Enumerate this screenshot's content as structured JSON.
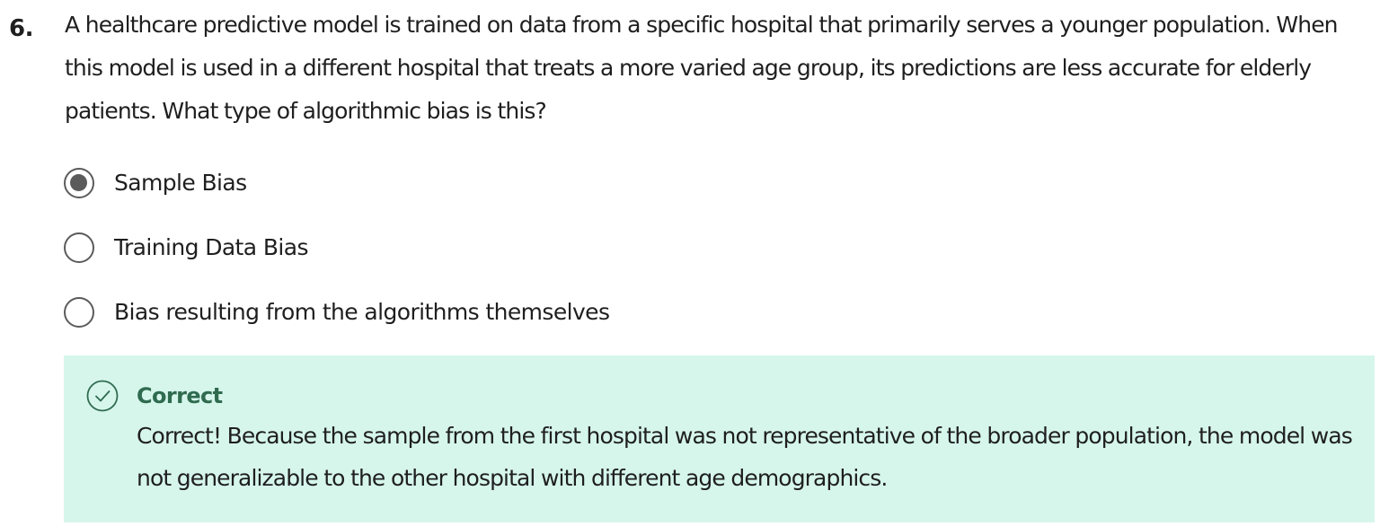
{
  "question": {
    "number": "6.",
    "text": "A healthcare predictive model is trained on data from a specific hospital that primarily serves a younger population. When this model is used in a different hospital that treats a more varied age group, its predictions are less accurate for elderly patients. What type of algorithmic bias is this?",
    "options": [
      {
        "label": "Sample Bias",
        "selected": true
      },
      {
        "label": "Training Data Bias",
        "selected": false
      },
      {
        "label": "Bias resulting from the algorithms themselves",
        "selected": false
      }
    ]
  },
  "feedback": {
    "status": "Correct",
    "icon": "check-circle-icon",
    "message": "Correct! Because the sample from the first hospital was not representative of the broader population, the model was not generalizable to the other hospital with different age demographics.",
    "background_color": "#d6f6ec",
    "accent_color": "#2f6b4f"
  }
}
